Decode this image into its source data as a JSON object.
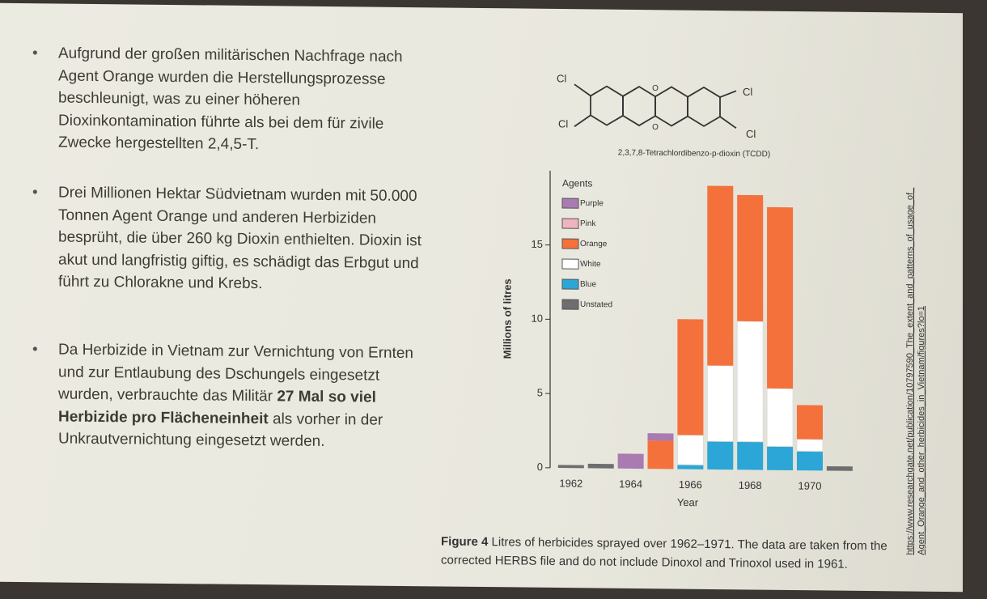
{
  "bullets": [
    {
      "text": "Aufgrund der großen militärischen Nachfrage nach Agent Orange wurden die Herstellungsprozesse beschleunigt, was zu einer höheren Dioxinkontamination führte als bei dem für zivile Zwecke hergestellten 2,4,5-T."
    },
    {
      "text": "Drei Millionen Hektar Südvietnam wurden mit 50.000 Tonnen Agent Orange und anderen Herbiziden besprüht, die über 260 kg Dioxin enthielten. Dioxin ist akut und langfristig giftig, es schädigt das Erbgut und führt zu Chlorakne und Krebs."
    },
    {
      "before": "Da Herbizide in Vietnam zur Vernichtung von Ernten und zur Entlaubung des Dschungels eingesetzt wurden, verbrauchte das Militär ",
      "bold": "27 Mal so viel Herbizide pro Flächeneinheit",
      "after": " als vorher in der Unkrautvernichtung eingesetzt werden."
    }
  ],
  "molecule": {
    "atoms": [
      "Cl",
      "Cl",
      "Cl",
      "Cl",
      "O",
      "O"
    ],
    "name": "2,3,7,8-Tetrachlordibenzo-p-dioxin (TCDD)"
  },
  "chart_data": {
    "type": "bar",
    "stacked": true,
    "x_label": "Year",
    "y_label": "Millions of litres",
    "legend_title": "Agents",
    "x": [
      1962,
      1963,
      1964,
      1965,
      1966,
      1967,
      1968,
      1969,
      1970,
      1971
    ],
    "xlim": [
      1961.3,
      1971.6
    ],
    "xticks": [
      1962,
      1964,
      1966,
      1968,
      1970
    ],
    "ylim": [
      0,
      20
    ],
    "yticks": [
      0,
      5,
      10,
      15
    ],
    "series": [
      {
        "name": "Purple",
        "color": "#a97bb0",
        "values": [
          0,
          0,
          1.0,
          0.5,
          0,
          0,
          0,
          0,
          0,
          0
        ]
      },
      {
        "name": "Pink",
        "color": "#f2b3c0",
        "values": [
          0,
          0,
          0,
          0,
          0,
          0,
          0,
          0,
          0,
          0
        ]
      },
      {
        "name": "Orange",
        "color": "#f5713b",
        "values": [
          0,
          0,
          0,
          1.9,
          7.8,
          12.1,
          8.5,
          12.2,
          2.3,
          0
        ]
      },
      {
        "name": "White",
        "color": "#ffffff",
        "values": [
          0,
          0,
          0,
          0,
          2.0,
          5.1,
          8.1,
          3.9,
          0.8,
          0
        ]
      },
      {
        "name": "Blue",
        "color": "#2ba6d6",
        "values": [
          0,
          0,
          0,
          0,
          0.3,
          1.9,
          1.9,
          1.6,
          1.3,
          0
        ]
      },
      {
        "name": "Unstated",
        "color": "#6e6e6e",
        "values": [
          0.2,
          0.3,
          0,
          0,
          0,
          0,
          0,
          0,
          0,
          0.3
        ]
      }
    ]
  },
  "caption": {
    "label": "Figure 4",
    "text": "Litres of herbicides sprayed over 1962–1971. The data are taken from the corrected HERBS file and do not include Dinoxol and Trinoxol used in 1961."
  },
  "source": {
    "line1": "https://www.researchgate.net/publication/10797590_The_extent_and_patterns_of_usage_of_",
    "line2": "Agent_Orange_and_other_herbicides_in_Vietnam/figures?lo=1"
  }
}
